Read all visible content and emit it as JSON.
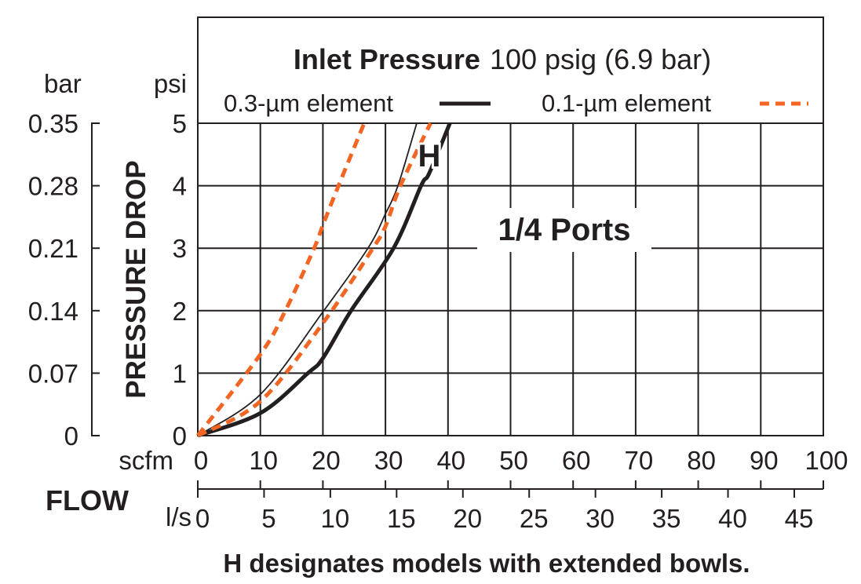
{
  "chart_data": {
    "type": "line",
    "title_bold": "Inlet Pressure",
    "title_rest": "100 psig (6.9 bar)",
    "xlabel": "FLOW",
    "ylabel": "PRESSURE DROP",
    "x_unit": "scfm",
    "x2_unit": "l/s",
    "y_unit": "psi",
    "y2_unit": "bar",
    "xlim": [
      0,
      100
    ],
    "ylim": [
      0,
      5
    ],
    "x_ticks": [
      "0",
      "10",
      "20",
      "30",
      "40",
      "50",
      "60",
      "70",
      "80",
      "90",
      "100"
    ],
    "x2_ticks": [
      "0",
      "5",
      "10",
      "15",
      "20",
      "25",
      "30",
      "35",
      "40",
      "45"
    ],
    "y_ticks": [
      "0",
      "1",
      "2",
      "3",
      "4",
      "5"
    ],
    "y2_ticks": [
      "0",
      "0.07",
      "0.14",
      "0.21",
      "0.28",
      "0.35"
    ],
    "grid": true,
    "legend_placement": "top",
    "legend": [
      {
        "label": "0.3-µm element",
        "style": "solid",
        "color": "#231f20"
      },
      {
        "label": "0.1-µm element",
        "style": "dashed",
        "color": "#f26522"
      }
    ],
    "series": [
      {
        "name": "0.3-µm element",
        "style": "solid-thick",
        "color": "#231f20",
        "x": [
          0,
          10,
          17.6,
          20,
          24.5,
          31.3,
          35.7,
          37,
          40.3
        ],
        "y": [
          0,
          0.36,
          1,
          1.24,
          2,
          3,
          4,
          4.2,
          5
        ]
      },
      {
        "name": "0.3-µm element",
        "style": "solid-thin",
        "color": "#231f20",
        "x": [
          0,
          10,
          20,
          27.2,
          30,
          32,
          35
        ],
        "y": [
          0,
          0.66,
          1.98,
          3,
          3.55,
          4,
          5
        ]
      },
      {
        "name": "0.1-µm element",
        "style": "dashed",
        "color": "#f26522",
        "x": [
          0,
          10,
          14,
          18.6,
          20,
          22.5,
          26.6
        ],
        "y": [
          0,
          1.3,
          2,
          3,
          3.37,
          4,
          5
        ]
      },
      {
        "name": "0.1-µm element",
        "style": "dashed",
        "color": "#f26522",
        "x": [
          0,
          10,
          20,
          28,
          30,
          32.4,
          37.2
        ],
        "y": [
          0,
          0.55,
          1.8,
          3,
          3.35,
          4,
          5
        ]
      }
    ],
    "annotations": {
      "h_label": "H",
      "ports": "1/4 Ports",
      "footnote": "H designates models with extended bowls."
    }
  }
}
